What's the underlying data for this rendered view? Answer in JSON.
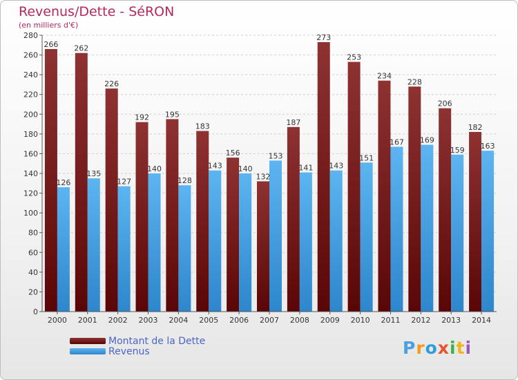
{
  "header": {
    "title": "Revenus/Dette - SéRON",
    "subtitle": "(en milliers d'€)"
  },
  "legend": {
    "items": [
      {
        "label": "Montant de la Dette",
        "color": "#7a1a1a"
      },
      {
        "label": "Revenus",
        "color": "#4aa6e8"
      }
    ]
  },
  "logo": {
    "text": "Proxiti"
  },
  "chart_data": {
    "type": "bar",
    "categories": [
      "2000",
      "2001",
      "2002",
      "2003",
      "2004",
      "2005",
      "2006",
      "2007",
      "2008",
      "2009",
      "2010",
      "2011",
      "2012",
      "2013",
      "2014"
    ],
    "series": [
      {
        "name": "Montant de la Dette",
        "values": [
          266,
          262,
          226,
          192,
          195,
          183,
          156,
          132,
          187,
          273,
          253,
          234,
          228,
          206,
          182
        ]
      },
      {
        "name": "Revenus",
        "values": [
          126,
          135,
          127,
          140,
          128,
          143,
          140,
          153,
          141,
          143,
          151,
          167,
          169,
          159,
          163
        ]
      }
    ],
    "title": "Revenus/Dette - SéRON",
    "subtitle": "(en milliers d'€)",
    "ylim": [
      0,
      280
    ],
    "yticks": [
      0,
      20,
      40,
      60,
      80,
      100,
      120,
      140,
      160,
      180,
      200,
      220,
      240,
      260,
      280
    ],
    "grid": true,
    "legend_position": "bottom-left"
  }
}
